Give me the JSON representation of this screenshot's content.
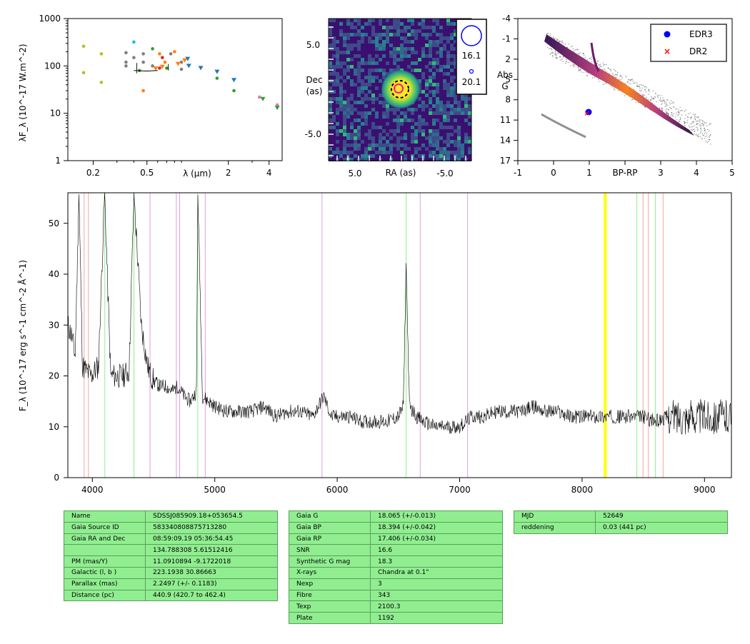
{
  "sed": {
    "ylabel": "λF_λ (10^-17 W.m^-2)",
    "yticks": [
      "1000",
      "100",
      "10",
      "1"
    ],
    "xticks": [
      "0.2",
      "0.5",
      "2",
      "4"
    ],
    "xlabel": "λ (μm)",
    "points": [
      {
        "x": 0.17,
        "y": 260,
        "c": "#bcbd22",
        "m": "dot"
      },
      {
        "x": 0.17,
        "y": 72,
        "c": "#bcbd22",
        "m": "dot"
      },
      {
        "x": 0.23,
        "y": 180,
        "c": "#bcbd22",
        "m": "dot"
      },
      {
        "x": 0.23,
        "y": 45,
        "c": "#bcbd22",
        "m": "dot"
      },
      {
        "x": 0.35,
        "y": 190,
        "c": "#7f7f7f",
        "m": "dot"
      },
      {
        "x": 0.35,
        "y": 120,
        "c": "#7f7f7f",
        "m": "dot"
      },
      {
        "x": 0.35,
        "y": 100,
        "c": "#7f7f7f",
        "m": "dot"
      },
      {
        "x": 0.4,
        "y": 320,
        "c": "#17becf",
        "m": "dot"
      },
      {
        "x": 0.4,
        "y": 150,
        "c": "#7f7f7f",
        "m": "dot"
      },
      {
        "x": 0.44,
        "y": 80,
        "c": "#2ca02c",
        "m": "dot"
      },
      {
        "x": 0.47,
        "y": 180,
        "c": "#7f7f7f",
        "m": "dot"
      },
      {
        "x": 0.47,
        "y": 120,
        "c": "#7f7f7f",
        "m": "dot"
      },
      {
        "x": 0.47,
        "y": 30,
        "c": "#ff7f0e",
        "m": "dot"
      },
      {
        "x": 0.55,
        "y": 230,
        "c": "#2ca02c",
        "m": "dot"
      },
      {
        "x": 0.55,
        "y": 100,
        "c": "#7f7f7f",
        "m": "dot"
      },
      {
        "x": 0.62,
        "y": 180,
        "c": "#ff7f0e",
        "m": "dot"
      },
      {
        "x": 0.62,
        "y": 90,
        "c": "#d62728",
        "m": "dot"
      },
      {
        "x": 0.65,
        "y": 150,
        "c": "#d62728",
        "m": "dot"
      },
      {
        "x": 0.68,
        "y": 120,
        "c": "#ff7f0e",
        "m": "dot"
      },
      {
        "x": 0.7,
        "y": 90,
        "c": "#2ca02c",
        "m": "dot"
      },
      {
        "x": 0.75,
        "y": 180,
        "c": "#7f7f7f",
        "m": "dot"
      },
      {
        "x": 0.8,
        "y": 200,
        "c": "#ff7f0e",
        "m": "dot"
      },
      {
        "x": 0.9,
        "y": 120,
        "c": "#7f7f7f",
        "m": "dot"
      },
      {
        "x": 0.9,
        "y": 85,
        "c": "#7f7f7f",
        "m": "dot"
      },
      {
        "x": 1.0,
        "y": 140,
        "c": "#1f77b4",
        "m": "tri"
      },
      {
        "x": 0.95,
        "y": 130,
        "c": "#ff7f0e",
        "m": "tri"
      },
      {
        "x": 0.85,
        "y": 110,
        "c": "#ff7f0e",
        "m": "tri"
      },
      {
        "x": 0.65,
        "y": 95,
        "c": "#ff7f0e",
        "m": "tri"
      },
      {
        "x": 0.58,
        "y": 88,
        "c": "#ff7f0e",
        "m": "tri"
      },
      {
        "x": 1.02,
        "y": 100,
        "c": "#1f77b4",
        "m": "tri"
      },
      {
        "x": 1.25,
        "y": 90,
        "c": "#1f77b4",
        "m": "tri"
      },
      {
        "x": 1.65,
        "y": 75,
        "c": "#1f77b4",
        "m": "tri"
      },
      {
        "x": 1.65,
        "y": 55,
        "c": "#2ca02c",
        "m": "dot"
      },
      {
        "x": 2.2,
        "y": 50,
        "c": "#1f77b4",
        "m": "tri"
      },
      {
        "x": 2.2,
        "y": 30,
        "c": "#2ca02c",
        "m": "dot"
      },
      {
        "x": 3.4,
        "y": 22,
        "c": "#e377c2",
        "m": "dot"
      },
      {
        "x": 3.6,
        "y": 20,
        "c": "#2ca02c",
        "m": "tri"
      },
      {
        "x": 4.6,
        "y": 15,
        "c": "#e377c2",
        "m": "dot"
      },
      {
        "x": 4.6,
        "y": 13,
        "c": "#2ca02c",
        "m": "tri"
      }
    ]
  },
  "image": {
    "ylabel": "Dec\n(as)",
    "xlabel": "RA (as)",
    "xticks": [
      "5.0",
      "-5.0"
    ],
    "yticks": [
      "5.0",
      "-5.0"
    ],
    "mags": [
      "16.1",
      "20.1"
    ]
  },
  "hrd": {
    "xlabel": "BP-RP",
    "ylabel": "Abs\nG",
    "xticks": [
      "-1",
      "0",
      "1",
      "3",
      "4",
      "5"
    ],
    "yticks": [
      "-4",
      "-1",
      "2",
      "5",
      "8",
      "11",
      "14",
      "17"
    ],
    "legend": [
      "EDR3",
      "DR2"
    ],
    "colors": {
      "edr3": "#0000ff",
      "dr2": "#ff0000"
    }
  },
  "chart_data": [
    {
      "type": "scatter",
      "xlabel": "λ (μm)",
      "ylabel": "λF_λ (10^-17 W.m^-2)",
      "xscale": "log",
      "yscale": "log",
      "xlim": [
        0.13,
        5.0
      ],
      "ylim": [
        1,
        1000
      ]
    },
    {
      "type": "heatmap",
      "xlabel": "RA (as)",
      "ylabel": "Dec (as)",
      "xlim": [
        8,
        -8
      ],
      "ylim": [
        -8,
        8
      ],
      "circle_labels": [
        "16.1",
        "20.1"
      ]
    },
    {
      "type": "scatter",
      "xlabel": "BP-RP",
      "ylabel": "Abs G",
      "xlim": [
        -1,
        5
      ],
      "ylim": [
        17,
        -4
      ],
      "series": [
        {
          "name": "EDR3",
          "x": [
            0.98
          ],
          "y": [
            9.7
          ]
        },
        {
          "name": "DR2",
          "x": [
            0.95
          ],
          "y": [
            9.9
          ]
        }
      ]
    },
    {
      "type": "line",
      "xlabel": "",
      "ylabel": "F_λ (10^-17 erg s^-1 cm^-2 Å^-1)",
      "xlim": [
        3800,
        9220
      ],
      "ylim": [
        0,
        56
      ],
      "xticks": [
        4000,
        5000,
        6000,
        7000,
        8000,
        9000
      ],
      "yticks": [
        0,
        10,
        20,
        30,
        40,
        50
      ],
      "spectrum_x": [
        3800,
        3830,
        3860,
        3890,
        3920,
        3950,
        3990,
        4050,
        4100,
        4150,
        4200,
        4250,
        4300,
        4340,
        4400,
        4450,
        4480,
        4500,
        4550,
        4600,
        4650,
        4700,
        4750,
        4800,
        4850,
        4862,
        4900,
        4950,
        5000,
        5100,
        5200,
        5300,
        5400,
        5500,
        5600,
        5700,
        5800,
        5890,
        5950,
        6000,
        6100,
        6200,
        6300,
        6400,
        6500,
        6540,
        6563,
        6590,
        6650,
        6700,
        6800,
        6900,
        7000,
        7050,
        7100,
        7200,
        7300,
        7400,
        7500,
        7600,
        7700,
        7800,
        7900,
        8000,
        8100,
        8200,
        8300,
        8400,
        8500,
        8600,
        8700,
        8800,
        8900,
        9000,
        9100,
        9220
      ],
      "spectrum_y": [
        30,
        28,
        24,
        56,
        22,
        21,
        20,
        22,
        56,
        20,
        20,
        20,
        21,
        56,
        30,
        22,
        20,
        19,
        18,
        18,
        17,
        18,
        16,
        15,
        17,
        56,
        16,
        15,
        14,
        13,
        13,
        13,
        14,
        12,
        13,
        13,
        12,
        16,
        12,
        12,
        12,
        11,
        11,
        11,
        12,
        14,
        42,
        14,
        12,
        11,
        10,
        10,
        10,
        11,
        12,
        12,
        13,
        13,
        13,
        14,
        13,
        13,
        12,
        12,
        12,
        12,
        12,
        12,
        12,
        11,
        12,
        12,
        12,
        12,
        12,
        12
      ],
      "lines": [
        {
          "x": 3933,
          "c": "#f4a6a6"
        },
        {
          "x": 3968,
          "c": "#f4a6a6"
        },
        {
          "x": 4102,
          "c": "#90ee90"
        },
        {
          "x": 4340,
          "c": "#90ee90"
        },
        {
          "x": 4471,
          "c": "#dda0dd"
        },
        {
          "x": 4686,
          "c": "#dda0dd"
        },
        {
          "x": 4713,
          "c": "#dda0dd"
        },
        {
          "x": 4861,
          "c": "#90ee90"
        },
        {
          "x": 4922,
          "c": "#dda0dd"
        },
        {
          "x": 5876,
          "c": "#dda0dd"
        },
        {
          "x": 6563,
          "c": "#90ee90"
        },
        {
          "x": 6678,
          "c": "#dda0dd"
        },
        {
          "x": 7065,
          "c": "#dda0dd"
        },
        {
          "x": 8183,
          "c": "#ffff00"
        },
        {
          "x": 8195,
          "c": "#ffff00"
        },
        {
          "x": 8447,
          "c": "#90ee90"
        },
        {
          "x": 8498,
          "c": "#f4a6a6"
        },
        {
          "x": 8542,
          "c": "#f4a6a6"
        },
        {
          "x": 8598,
          "c": "#90ee90"
        },
        {
          "x": 8662,
          "c": "#f4a6a6"
        }
      ]
    }
  ],
  "spectrum": {
    "ylabel": "F_λ (10^-17 erg s^-1 cm^-2 Å^-1)",
    "xticks": [
      "4000",
      "5000",
      "6000",
      "7000",
      "8000",
      "9000"
    ],
    "yticks": [
      "0",
      "10",
      "20",
      "30",
      "40",
      "50"
    ]
  },
  "table1": [
    [
      "Name",
      "SDSSJ085909.18+053654.5"
    ],
    [
      "Gaia Source ID",
      "583340808875713280"
    ],
    [
      "Gaia RA and Dec",
      "08:59:09.19    05:36:54.45"
    ],
    [
      "",
      "134.788308    5.61512416"
    ],
    [
      "PM (mas/Y)",
      "11.0910894    -9.1722018"
    ],
    [
      "Galactic (l, b )",
      "223.1938    30.86663"
    ],
    [
      "Parallax (mas)",
      "2.2497 (+/- 0.1183)"
    ],
    [
      "Distance (pc)",
      "440.9 (420.7 to 462.4)"
    ]
  ],
  "table2": [
    [
      "Gaia G",
      "18.065 (+/-0.013)"
    ],
    [
      "Gaia BP",
      "18.394 (+/-0.042)"
    ],
    [
      "Gaia RP",
      "17.406 (+/-0.034)"
    ],
    [
      "SNR",
      "16.6"
    ],
    [
      "Synthetic G mag",
      "18.3"
    ],
    [
      "X-rays",
      "Chandra at 0.1\""
    ],
    [
      "Nexp",
      "3"
    ],
    [
      "Fibre",
      "343"
    ],
    [
      "Texp",
      "2100.3"
    ],
    [
      "Plate",
      "1192"
    ]
  ],
  "table3": [
    [
      "MJD",
      "52649"
    ],
    [
      "reddening",
      "0.03 (441 pc)"
    ]
  ]
}
